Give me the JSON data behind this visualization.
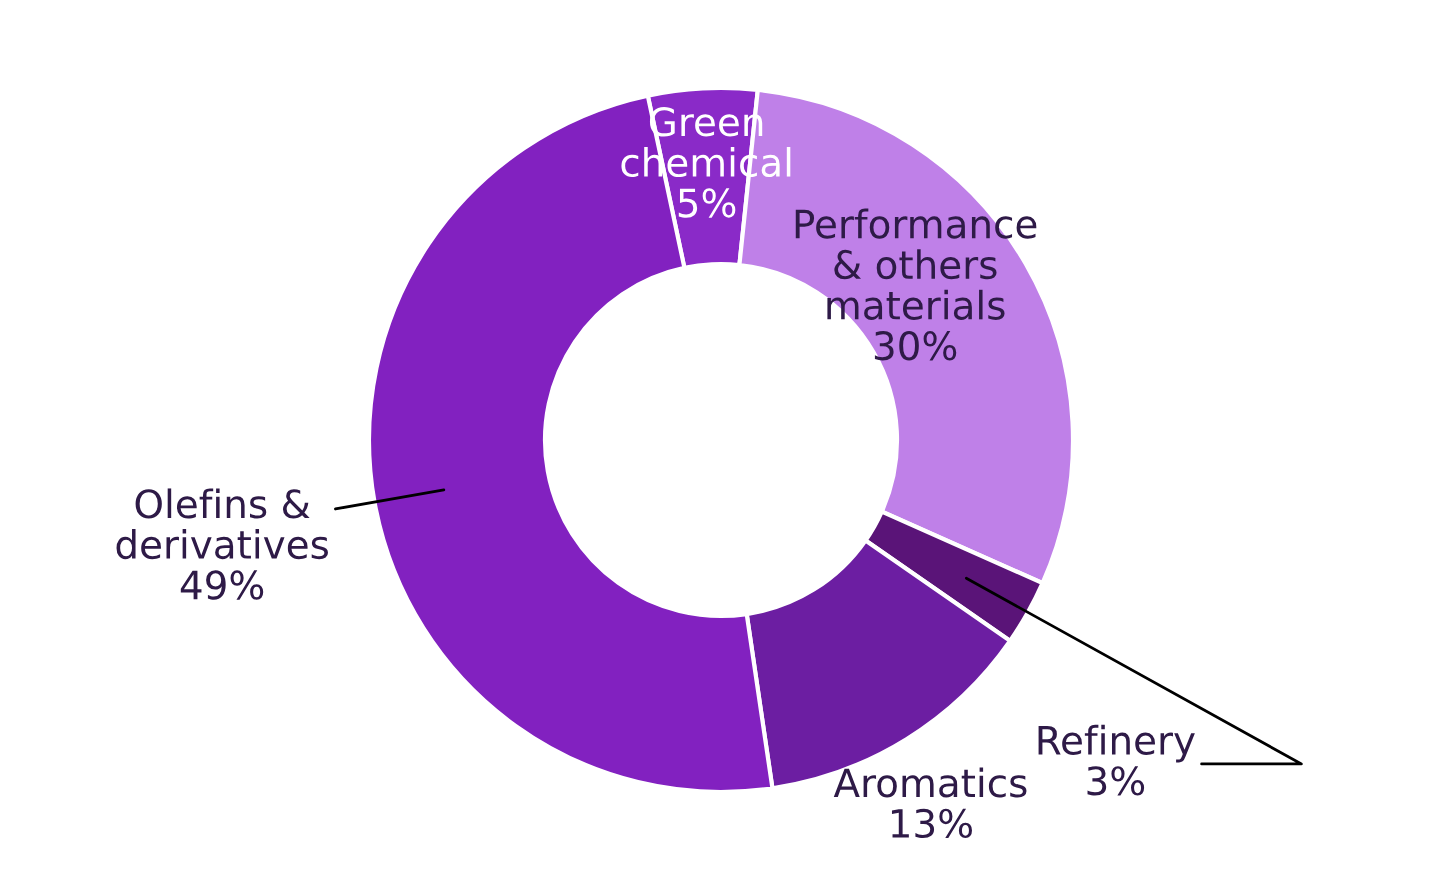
{
  "chart_data": {
    "type": "donut",
    "categories": [
      "Green\nchemical",
      "Performance\n& others\nmaterials",
      "Refinery",
      "Aromatics",
      "Olefins &\nderivatives"
    ],
    "values": [
      5,
      30,
      3,
      13,
      49
    ],
    "value_labels": [
      "5%",
      "30%",
      "3%",
      "13%",
      "49%"
    ],
    "colors": [
      "#8a2ac8",
      "#bf80e8",
      "#5a1478",
      "#6c1ea2",
      "#8221c0"
    ],
    "legend": false
  }
}
